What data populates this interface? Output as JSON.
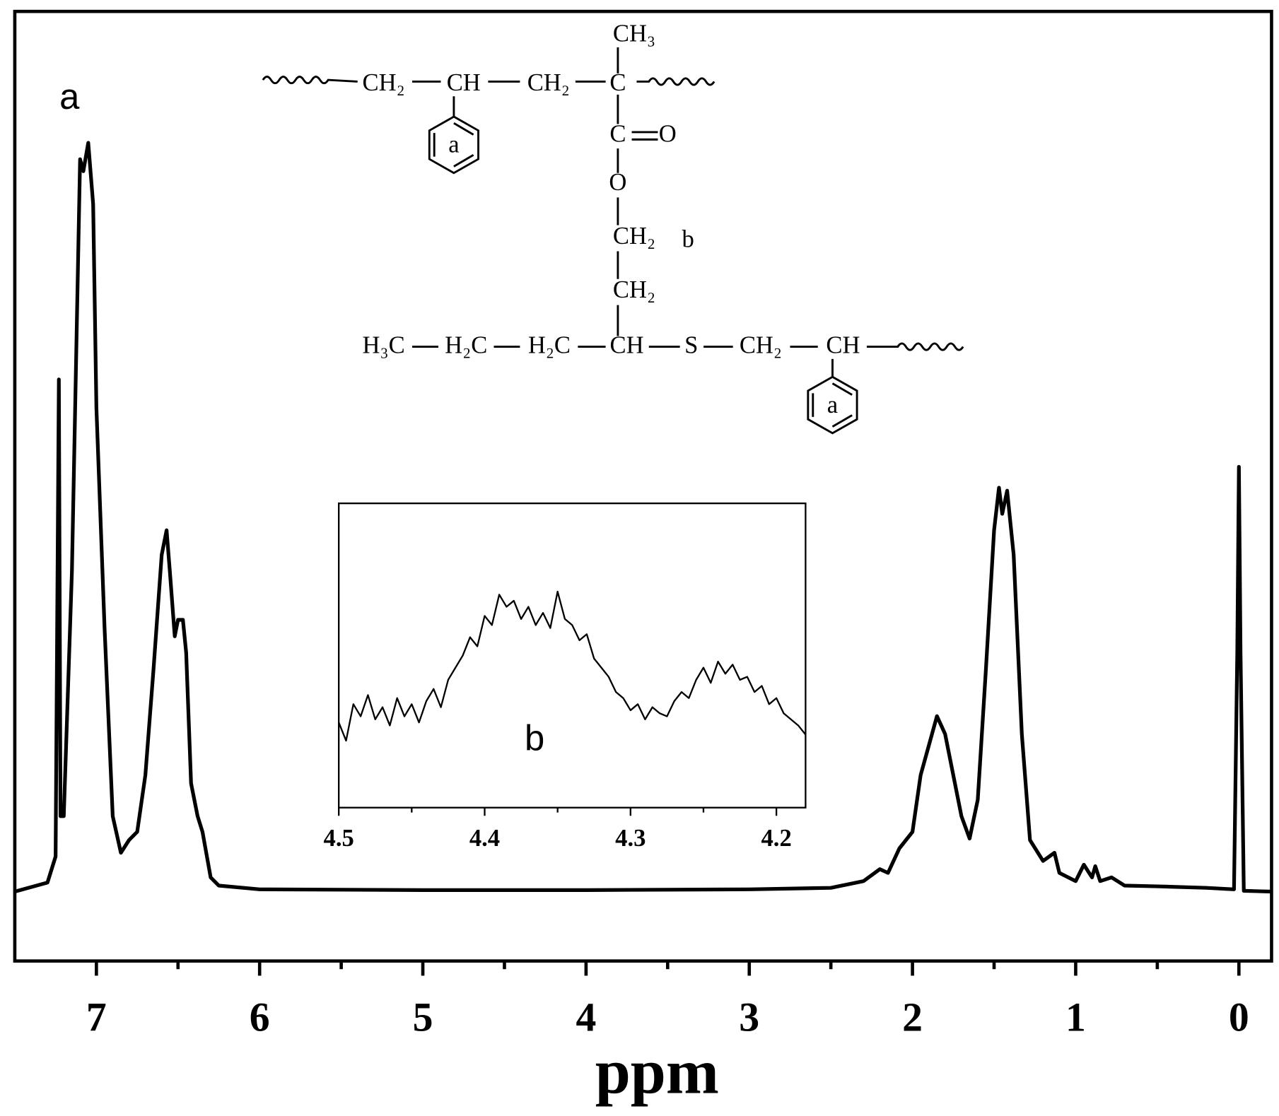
{
  "chart_data": [
    {
      "type": "line",
      "xlabel": "ppm",
      "annotation": "a",
      "color": "#000000",
      "x": [
        7.5,
        7.3,
        7.25,
        7.23,
        7.22,
        7.2,
        7.15,
        7.1,
        7.08,
        7.05,
        7.02,
        7.0,
        6.95,
        6.9,
        6.85,
        6.8,
        6.75,
        6.7,
        6.65,
        6.6,
        6.57,
        6.55,
        6.52,
        6.5,
        6.47,
        6.45,
        6.42,
        6.38,
        6.35,
        6.3,
        6.25,
        6.0,
        5.0,
        4.0,
        3.0,
        2.5,
        2.3,
        2.2,
        2.15,
        2.08,
        2.0,
        1.95,
        1.85,
        1.8,
        1.7,
        1.65,
        1.6,
        1.55,
        1.5,
        1.47,
        1.45,
        1.42,
        1.38,
        1.33,
        1.28,
        1.2,
        1.13,
        1.1,
        1.0,
        0.95,
        0.9,
        0.88,
        0.85,
        0.78,
        0.7,
        0.5,
        0.2,
        0.03,
        0.01,
        0.0,
        -0.01,
        -0.03,
        -0.2
      ],
      "values": [
        -0.3,
        0.9,
        4.4,
        68.3,
        9.8,
        9.8,
        42.6,
        97.8,
        96.2,
        100,
        91.8,
        64.5,
        35,
        9.8,
        4.9,
        6.6,
        7.7,
        15.3,
        29.5,
        44.8,
        48.1,
        42.6,
        33.9,
        36.1,
        36.1,
        31.7,
        14.2,
        9.8,
        7.7,
        1.6,
        0.5,
        0,
        -0.1,
        -0.1,
        0,
        0.2,
        1.1,
        2.7,
        2.2,
        5.5,
        7.7,
        15.3,
        23.2,
        20.8,
        9.8,
        6.8,
        12,
        29.5,
        48.1,
        53.8,
        50.3,
        53.4,
        44.8,
        20.8,
        6.6,
        3.8,
        4.9,
        2.2,
        1.1,
        3.3,
        1.6,
        3.1,
        1.1,
        1.6,
        0.5,
        0.4,
        0.2,
        0,
        31.7,
        56.6,
        31.7,
        -0.2,
        -0.3
      ],
      "xlim": [
        7.5,
        -0.2
      ],
      "ylim": [
        -9.6,
        117.6
      ],
      "xticks": [
        7,
        6,
        5,
        4,
        3,
        2,
        1,
        0
      ],
      "xminorticks": [
        6.5,
        5.5,
        4.5,
        3.5,
        2.5,
        1.5,
        0.5
      ]
    },
    {
      "type": "line",
      "annotation": "b",
      "color": "#000000",
      "x": [
        4.5,
        4.495,
        4.49,
        4.485,
        4.48,
        4.475,
        4.47,
        4.465,
        4.46,
        4.455,
        4.45,
        4.445,
        4.44,
        4.435,
        4.43,
        4.425,
        4.42,
        4.415,
        4.41,
        4.405,
        4.4,
        4.395,
        4.39,
        4.385,
        4.38,
        4.375,
        4.37,
        4.365,
        4.36,
        4.355,
        4.35,
        4.345,
        4.34,
        4.335,
        4.33,
        4.325,
        4.32,
        4.315,
        4.31,
        4.305,
        4.3,
        4.295,
        4.29,
        4.285,
        4.28,
        4.275,
        4.27,
        4.265,
        4.26,
        4.255,
        4.25,
        4.245,
        4.24,
        4.235,
        4.23,
        4.225,
        4.22,
        4.215,
        4.21,
        4.205,
        4.2,
        4.195,
        4.19,
        4.185,
        4.18
      ],
      "values": [
        28,
        22,
        34,
        30,
        37,
        29,
        33,
        27,
        36,
        30,
        34,
        28,
        35,
        39,
        33,
        42,
        46,
        50,
        56,
        53,
        63,
        60,
        70,
        66,
        68,
        62,
        66,
        60,
        64,
        59,
        71,
        62,
        60,
        55,
        57,
        49,
        46,
        43,
        38,
        36,
        32,
        34,
        29,
        33,
        31,
        30,
        35,
        38,
        36,
        42,
        46,
        41,
        48,
        44,
        47,
        42,
        43,
        38,
        40,
        34,
        36,
        31,
        29,
        27,
        24
      ],
      "xlim": [
        4.5,
        4.18
      ],
      "ylim": [
        0,
        100
      ],
      "xticks": [
        4.5,
        4.4,
        4.3,
        4.2
      ],
      "xminorticks": [
        4.45,
        4.35,
        4.25
      ]
    }
  ],
  "structure": {
    "labels": [
      "CH₂",
      "CH",
      "CH₂",
      "CH₃",
      "C",
      "C",
      "O",
      "O",
      "CH₂",
      "b",
      "CH₂",
      "H₃C",
      "H₂C",
      "H₂C",
      "CH",
      "S",
      "CH₂",
      "CH",
      "a",
      "a"
    ]
  }
}
